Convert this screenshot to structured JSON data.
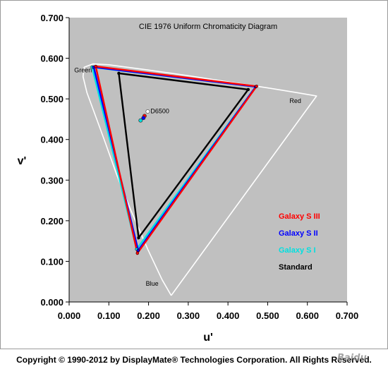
{
  "chart_data": {
    "type": "line",
    "title": "CIE 1976 Uniform Chromaticity Diagram",
    "xlabel": "u'",
    "ylabel": "v'",
    "xlim": [
      0.0,
      0.7
    ],
    "ylim": [
      0.0,
      0.7
    ],
    "x_ticks": [
      "0.000",
      "0.100",
      "0.200",
      "0.300",
      "0.400",
      "0.500",
      "0.600",
      "0.700"
    ],
    "y_ticks": [
      "0.000",
      "0.100",
      "0.200",
      "0.300",
      "0.400",
      "0.500",
      "0.600",
      "0.700"
    ],
    "grid": false,
    "legend_position": "bottom-right",
    "colors": {
      "plot_background": "#c0c0c0",
      "locus": "#ffffff"
    },
    "spectral_locus": [
      [
        0.257,
        0.016
      ],
      [
        0.234,
        0.055
      ],
      [
        0.198,
        0.13
      ],
      [
        0.155,
        0.227
      ],
      [
        0.12,
        0.313
      ],
      [
        0.09,
        0.395
      ],
      [
        0.063,
        0.467
      ],
      [
        0.045,
        0.515
      ],
      [
        0.035,
        0.555
      ],
      [
        0.038,
        0.578
      ],
      [
        0.06,
        0.586
      ],
      [
        0.1,
        0.584
      ],
      [
        0.2,
        0.571
      ],
      [
        0.3,
        0.557
      ],
      [
        0.4,
        0.542
      ],
      [
        0.5,
        0.527
      ],
      [
        0.57,
        0.516
      ],
      [
        0.623,
        0.507
      ],
      [
        0.257,
        0.016
      ]
    ],
    "series": [
      {
        "name": "Standard",
        "color": "#000000",
        "points": [
          [
            0.451,
            0.523
          ],
          [
            0.125,
            0.563
          ],
          [
            0.175,
            0.158
          ]
        ]
      },
      {
        "name": "Galaxy S I",
        "color": "#00e0e0",
        "points": [
          [
            0.47,
            0.53
          ],
          [
            0.058,
            0.578
          ],
          [
            0.17,
            0.13
          ]
        ]
      },
      {
        "name": "Galaxy S II",
        "color": "#0000ff",
        "points": [
          [
            0.47,
            0.53
          ],
          [
            0.062,
            0.578
          ],
          [
            0.174,
            0.127
          ]
        ]
      },
      {
        "name": "Galaxy S III",
        "color": "#ff0000",
        "points": [
          [
            0.472,
            0.531
          ],
          [
            0.067,
            0.58
          ],
          [
            0.172,
            0.12
          ]
        ]
      }
    ],
    "white_points": [
      {
        "color": "#ff0000",
        "x": 0.19,
        "y": 0.458
      },
      {
        "color": "#0000ff",
        "x": 0.187,
        "y": 0.453
      },
      {
        "color": "#00e0e0",
        "x": 0.18,
        "y": 0.447
      },
      {
        "color": "#ffffff",
        "x": 0.198,
        "y": 0.469,
        "label": "D6500"
      }
    ],
    "annotations": [
      {
        "text": "Green",
        "x": 0.013,
        "y": 0.565
      },
      {
        "text": "Red",
        "x": 0.555,
        "y": 0.49
      },
      {
        "text": "Blue",
        "x": 0.193,
        "y": 0.04
      },
      {
        "text": "D6500",
        "x": 0.205,
        "y": 0.465
      }
    ],
    "legend": [
      {
        "label": "Galaxy S III",
        "color": "#ff0000"
      },
      {
        "label": "Galaxy S II",
        "color": "#0000ff"
      },
      {
        "label": "Galaxy S I",
        "color": "#00e0e0"
      },
      {
        "label": "Standard",
        "color": "#000000"
      }
    ]
  },
  "copyright": "Copyright © 1990-2012 by DisplayMate® Technologies Corporation. All Rights Reserved.",
  "watermark": "Baidu"
}
